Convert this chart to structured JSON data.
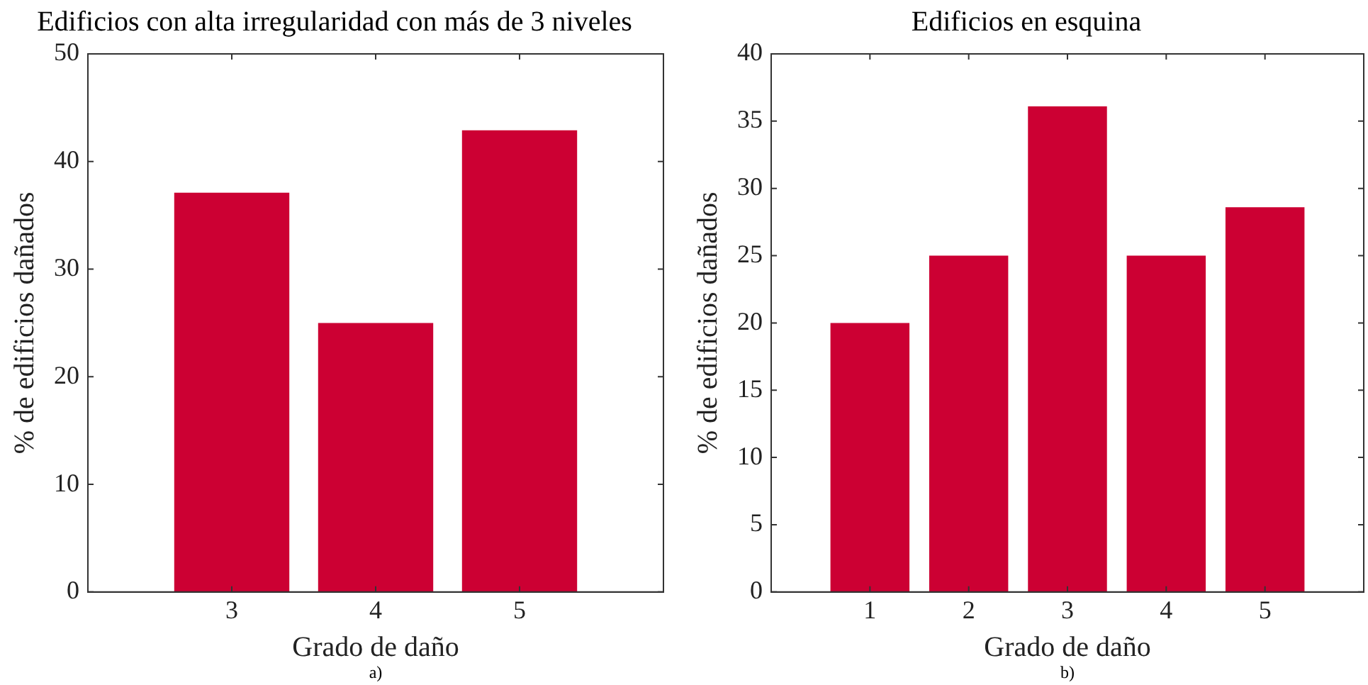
{
  "chart_data": [
    {
      "type": "bar",
      "title": "Edificios con alta irregularidad con más de 3 niveles",
      "xlabel": "Grado de daño",
      "ylabel": "% de edificios dañados",
      "x": [
        3,
        4,
        5
      ],
      "values": [
        37.1,
        25,
        42.9
      ],
      "color": "#cc0033",
      "xlim": [
        2,
        6
      ],
      "xticks": [
        3,
        4,
        5
      ],
      "ylim": [
        0,
        50
      ],
      "yticks": [
        0,
        10,
        20,
        30,
        40,
        50
      ],
      "grid": false,
      "legend": false,
      "annotations": [
        "a)"
      ]
    },
    {
      "type": "bar",
      "title": "Edificios en esquina",
      "xlabel": "Grado de daño",
      "ylabel": "% de edificios dañados",
      "x": [
        1,
        2,
        3,
        4,
        5
      ],
      "values": [
        20,
        25,
        36.1,
        25,
        28.6
      ],
      "color": "#cc0033",
      "xlim": [
        0,
        6
      ],
      "xticks": [
        1,
        2,
        3,
        4,
        5
      ],
      "ylim": [
        0,
        40
      ],
      "yticks": [
        0,
        5,
        10,
        15,
        20,
        25,
        30,
        35,
        40
      ],
      "grid": false,
      "legend": false,
      "annotations": [
        "b)"
      ]
    }
  ]
}
